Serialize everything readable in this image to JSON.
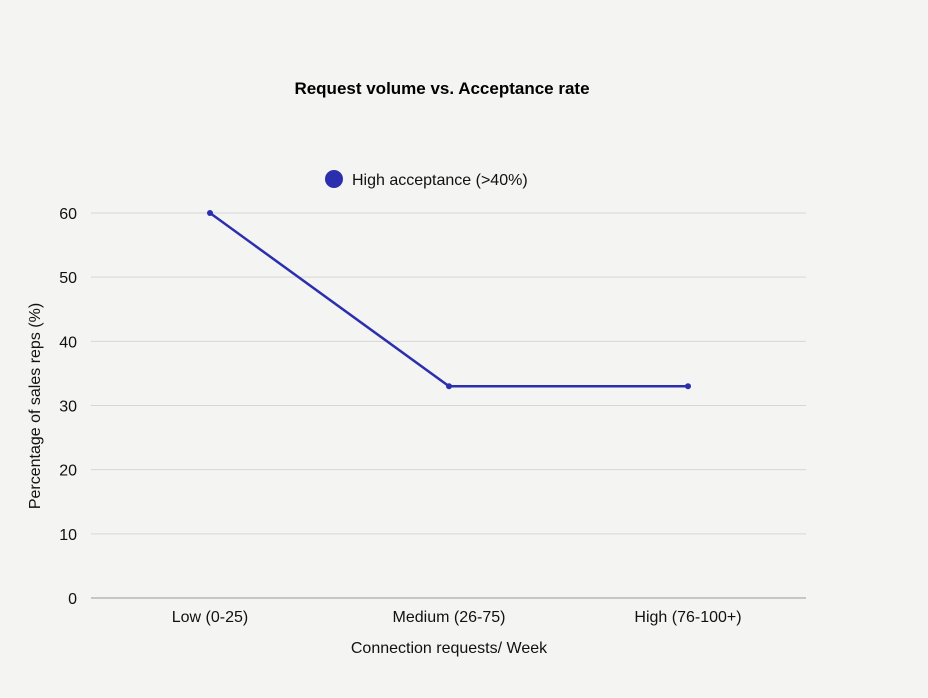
{
  "chart_data": {
    "type": "line",
    "title": "Request volume vs. Acceptance rate",
    "xlabel": "Connection requests/ Week",
    "ylabel": "Percentage of sales reps (%)",
    "categories": [
      "Low (0-25)",
      "Medium (26-75)",
      "High (76-100+)"
    ],
    "series": [
      {
        "name": "High acceptance (>40%)",
        "values": [
          60,
          33,
          33
        ],
        "color": "#2b2fae"
      }
    ],
    "ylim": [
      0,
      60
    ],
    "yticks": [
      0,
      10,
      20,
      30,
      40,
      50,
      60
    ],
    "grid": true,
    "legend": "top-center"
  }
}
